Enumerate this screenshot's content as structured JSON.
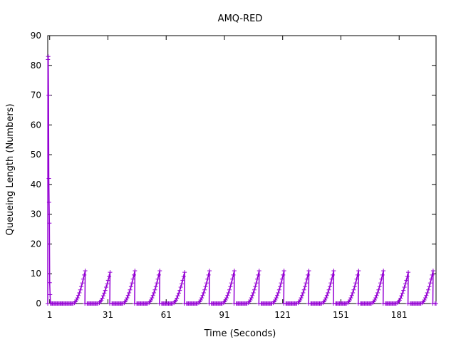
{
  "chart_data": {
    "type": "line",
    "title": "AMQ-RED",
    "xlabel": "Time (Seconds)",
    "ylabel": "Queueing Length (Numbers)",
    "xlim": [
      0,
      200
    ],
    "ylim": [
      0,
      90
    ],
    "x_ticks": [
      1,
      31,
      61,
      91,
      121,
      151,
      181
    ],
    "y_ticks": [
      0,
      10,
      20,
      30,
      40,
      50,
      60,
      70,
      80,
      90
    ],
    "grid": false,
    "legend": "none",
    "marker": "+",
    "series": [
      {
        "color": "#9400d3",
        "initial_burst": [
          [
            0.0,
            0
          ],
          [
            0.1,
            82
          ],
          [
            0.25,
            83
          ],
          [
            0.4,
            70
          ],
          [
            0.55,
            42
          ],
          [
            0.7,
            34
          ],
          [
            0.85,
            27
          ],
          [
            1.0,
            7
          ],
          [
            1.2,
            3
          ],
          [
            1.4,
            0
          ]
        ],
        "cycle_start": 7.5,
        "cycle_period": 12.8,
        "cycle_count": 15,
        "cycle_low_duration": 5.8,
        "cycle_ramp_duration": 5.8,
        "cycle_low_value": 0,
        "cycle_peaks": [
          11,
          10.5,
          11,
          11,
          10.5,
          11,
          11,
          11,
          11,
          11,
          11,
          11,
          11,
          10.5,
          11
        ],
        "x_end": 200
      }
    ]
  }
}
